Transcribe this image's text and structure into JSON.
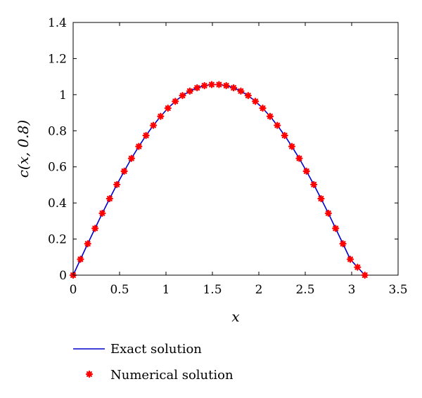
{
  "chart_data": {
    "type": "line",
    "xlabel": "x",
    "ylabel": "c(x, 0.8)",
    "xlim": [
      0,
      3.5
    ],
    "ylim": [
      0,
      1.4
    ],
    "xticks": [
      "0",
      "0.5",
      "1",
      "1.5",
      "2",
      "2.5",
      "3",
      "3.5"
    ],
    "yticks": [
      "0",
      "0.2",
      "0.4",
      "0.6",
      "0.8",
      "1",
      "1.2",
      "1.4"
    ],
    "grid": false,
    "legend_position": "bottom-left",
    "series": [
      {
        "name": "Exact solution",
        "style": "line",
        "color": "#0000cc",
        "x": [
          0,
          0.079,
          0.157,
          0.236,
          0.314,
          0.393,
          0.471,
          0.55,
          0.628,
          0.707,
          0.785,
          0.864,
          0.942,
          1.021,
          1.1,
          1.178,
          1.257,
          1.335,
          1.414,
          1.492,
          1.571,
          1.649,
          1.728,
          1.806,
          1.885,
          1.963,
          2.042,
          2.121,
          2.199,
          2.278,
          2.356,
          2.435,
          2.513,
          2.592,
          2.67,
          2.749,
          2.827,
          2.906,
          2.985,
          3.063,
          3.142
        ],
        "y": [
          0,
          0.088,
          0.174,
          0.259,
          0.343,
          0.424,
          0.502,
          0.576,
          0.647,
          0.713,
          0.774,
          0.83,
          0.88,
          0.925,
          0.963,
          0.995,
          1.02,
          1.038,
          1.05,
          1.056,
          1.056,
          1.05,
          1.038,
          1.02,
          0.995,
          0.963,
          0.925,
          0.88,
          0.83,
          0.774,
          0.713,
          0.647,
          0.576,
          0.502,
          0.424,
          0.343,
          0.259,
          0.174,
          0.088,
          0.044,
          0
        ]
      },
      {
        "name": "Numerical solution",
        "style": "marker",
        "color": "#ff0000",
        "x": [
          0,
          0.079,
          0.157,
          0.236,
          0.314,
          0.393,
          0.471,
          0.55,
          0.628,
          0.707,
          0.785,
          0.864,
          0.942,
          1.021,
          1.1,
          1.178,
          1.257,
          1.335,
          1.414,
          1.492,
          1.571,
          1.649,
          1.728,
          1.806,
          1.885,
          1.963,
          2.042,
          2.121,
          2.199,
          2.278,
          2.356,
          2.435,
          2.513,
          2.592,
          2.67,
          2.749,
          2.827,
          2.906,
          2.985,
          3.063,
          3.142
        ],
        "y": [
          0,
          0.088,
          0.174,
          0.259,
          0.343,
          0.424,
          0.502,
          0.576,
          0.647,
          0.713,
          0.774,
          0.83,
          0.88,
          0.925,
          0.963,
          0.995,
          1.02,
          1.038,
          1.05,
          1.056,
          1.056,
          1.05,
          1.038,
          1.02,
          0.995,
          0.963,
          0.925,
          0.88,
          0.83,
          0.774,
          0.713,
          0.647,
          0.576,
          0.502,
          0.424,
          0.343,
          0.259,
          0.174,
          0.088,
          0.044,
          0
        ]
      }
    ]
  }
}
